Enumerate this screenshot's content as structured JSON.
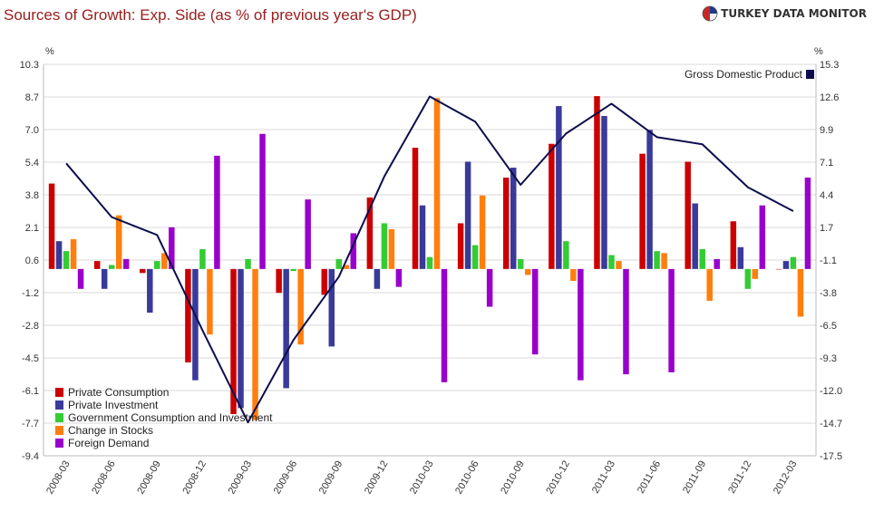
{
  "header": {
    "title": "Sources of Growth: Exp. Side (as % of previous year's GDP)",
    "logo_text": "TURKEY DATA MONITOR"
  },
  "chart_data": {
    "type": "bar",
    "title": "Sources of Growth: Exp. Side (as % of previous year's GDP)",
    "y_left_unit": "%",
    "y_right_unit": "%",
    "y_left_ticks": [
      "10.3",
      "8.7",
      "7.0",
      "5.4",
      "3.8",
      "2.1",
      "0.6",
      "-1.2",
      "-2.8",
      "-4.5",
      "-6.1",
      "-7.7",
      "-9.4"
    ],
    "y_right_ticks": [
      "15.3",
      "12.6",
      "9.9",
      "7.1",
      "4.4",
      "1.7",
      "-1.1",
      "-3.8",
      "-6.5",
      "-9.3",
      "-12.0",
      "-14.7",
      "-17.5"
    ],
    "y_left_range": [
      -9.4,
      10.3
    ],
    "y_right_range": [
      -17.5,
      15.3
    ],
    "grid": true,
    "legend_position": "bottom-left",
    "categories": [
      "2008-03",
      "2008-06",
      "2008-09",
      "2008-12",
      "2009-03",
      "2009-06",
      "2009-09",
      "2009-12",
      "2010-03",
      "2010-06",
      "2010-09",
      "2010-12",
      "2011-03",
      "2011-06",
      "2011-09",
      "2011-12",
      "2012-03"
    ],
    "series": [
      {
        "name": "Private Consumption",
        "color": "#cc0000",
        "axis": "left",
        "values": [
          4.3,
          0.4,
          -0.2,
          -4.7,
          -7.3,
          -1.2,
          -1.3,
          3.6,
          6.1,
          2.3,
          4.6,
          6.3,
          8.7,
          5.8,
          5.4,
          2.4,
          0.0
        ]
      },
      {
        "name": "Private Investment",
        "color": "#3a3a9a",
        "axis": "left",
        "values": [
          1.4,
          -1.0,
          -2.2,
          -5.6,
          -7.0,
          -6.0,
          -3.9,
          -1.0,
          3.2,
          5.4,
          5.1,
          8.2,
          7.7,
          7.0,
          3.3,
          1.1,
          0.4
        ]
      },
      {
        "name": "Government Consumption and Investment",
        "color": "#33cc33",
        "axis": "left",
        "values": [
          0.9,
          0.2,
          0.4,
          1.0,
          0.5,
          -0.1,
          0.5,
          2.3,
          0.6,
          1.2,
          0.5,
          1.4,
          0.7,
          0.9,
          1.0,
          -1.0,
          0.6
        ]
      },
      {
        "name": "Change in Stocks",
        "color": "#ff7f0e",
        "axis": "left",
        "values": [
          1.5,
          2.7,
          0.8,
          -3.3,
          -7.6,
          -3.8,
          0.2,
          2.0,
          8.6,
          3.7,
          -0.3,
          -0.6,
          0.4,
          0.8,
          -1.6,
          -0.5,
          -2.4
        ]
      },
      {
        "name": "Foreign Demand",
        "color": "#9900cc",
        "axis": "left",
        "values": [
          -1.0,
          0.5,
          2.1,
          5.7,
          6.8,
          3.5,
          1.8,
          -0.9,
          -5.7,
          -1.9,
          -4.3,
          -5.6,
          -5.3,
          -5.2,
          0.5,
          3.2,
          4.6
        ]
      },
      {
        "name": "Gross Domestic Product",
        "color": "#0d0d4d",
        "axis": "right",
        "type": "line",
        "values": [
          7.0,
          2.5,
          1.0,
          -7.0,
          -14.7,
          -7.8,
          -2.5,
          5.9,
          12.6,
          10.5,
          5.2,
          9.5,
          12.0,
          9.2,
          8.6,
          5.0,
          3.0
        ]
      }
    ]
  }
}
